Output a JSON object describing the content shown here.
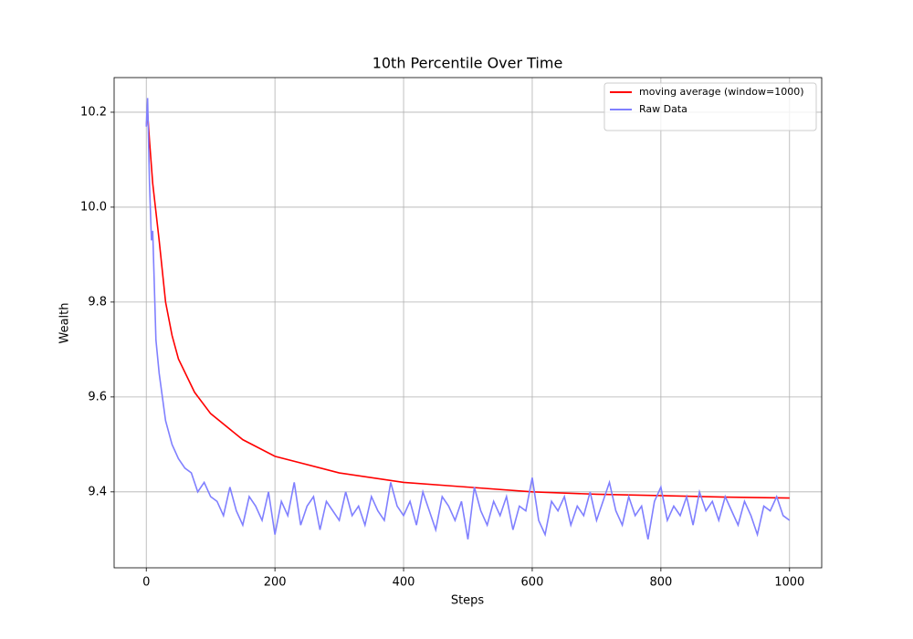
{
  "chart_data": {
    "type": "line",
    "title": "10th Percentile Over Time",
    "x_label": "Steps",
    "y_label": "Wealth",
    "xlim": [
      -50,
      1050
    ],
    "ylim": [
      9.24,
      10.273
    ],
    "xticks": [
      0,
      200,
      400,
      600,
      800,
      1000
    ],
    "yticks": [
      9.4,
      9.6,
      9.8,
      {
        "value": 10,
        "label": "10.0"
      },
      10.2
    ],
    "grid": true,
    "legend": "upper right",
    "series": [
      {
        "name": "moving average (window=1000)",
        "color": "#ff0000",
        "x": [
          0,
          2,
          5,
          10,
          15,
          20,
          30,
          40,
          50,
          75,
          100,
          150,
          200,
          300,
          400,
          500,
          600,
          700,
          800,
          900,
          1000
        ],
        "values": [
          10.17,
          10.2,
          10.14,
          10.05,
          9.99,
          9.93,
          9.8,
          9.73,
          9.68,
          9.61,
          9.565,
          9.51,
          9.475,
          9.44,
          9.42,
          9.41,
          9.4,
          9.395,
          9.392,
          9.389,
          9.387
        ]
      },
      {
        "name": "Raw Data",
        "color": "#8080ff",
        "x": [
          0,
          2,
          5,
          8,
          10,
          15,
          20,
          25,
          30,
          40,
          50,
          60,
          70,
          80,
          90,
          100,
          110,
          120,
          130,
          140,
          150,
          160,
          170,
          180,
          190,
          200,
          210,
          220,
          230,
          240,
          250,
          260,
          270,
          280,
          290,
          300,
          310,
          320,
          330,
          340,
          350,
          360,
          370,
          380,
          390,
          400,
          410,
          420,
          430,
          440,
          450,
          460,
          470,
          480,
          490,
          500,
          510,
          520,
          530,
          540,
          550,
          560,
          570,
          580,
          590,
          600,
          610,
          620,
          630,
          640,
          650,
          660,
          670,
          680,
          690,
          700,
          710,
          720,
          730,
          740,
          750,
          760,
          770,
          780,
          790,
          800,
          810,
          820,
          830,
          840,
          850,
          860,
          870,
          880,
          890,
          900,
          910,
          920,
          930,
          940,
          950,
          960,
          970,
          980,
          990,
          1000
        ],
        "values": [
          10.17,
          10.23,
          10.05,
          9.93,
          9.95,
          9.72,
          9.65,
          9.6,
          9.55,
          9.5,
          9.47,
          9.45,
          9.44,
          9.4,
          9.42,
          9.39,
          9.38,
          9.35,
          9.41,
          9.36,
          9.33,
          9.39,
          9.37,
          9.34,
          9.4,
          9.31,
          9.38,
          9.35,
          9.42,
          9.33,
          9.37,
          9.39,
          9.32,
          9.38,
          9.36,
          9.34,
          9.4,
          9.35,
          9.37,
          9.33,
          9.39,
          9.36,
          9.34,
          9.42,
          9.37,
          9.35,
          9.38,
          9.33,
          9.4,
          9.36,
          9.32,
          9.39,
          9.37,
          9.34,
          9.38,
          9.3,
          9.41,
          9.36,
          9.33,
          9.38,
          9.35,
          9.39,
          9.32,
          9.37,
          9.36,
          9.43,
          9.34,
          9.31,
          9.38,
          9.36,
          9.39,
          9.33,
          9.37,
          9.35,
          9.4,
          9.34,
          9.38,
          9.42,
          9.36,
          9.33,
          9.39,
          9.35,
          9.37,
          9.3,
          9.38,
          9.41,
          9.34,
          9.37,
          9.35,
          9.39,
          9.33,
          9.4,
          9.36,
          9.38,
          9.34,
          9.39,
          9.36,
          9.33,
          9.38,
          9.35,
          9.31,
          9.37,
          9.36,
          9.39,
          9.35,
          9.34
        ]
      }
    ]
  }
}
